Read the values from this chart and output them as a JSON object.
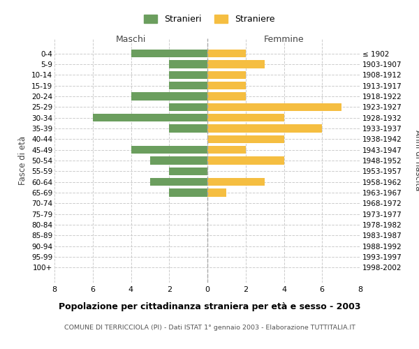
{
  "age_groups": [
    "0-4",
    "5-9",
    "10-14",
    "15-19",
    "20-24",
    "25-29",
    "30-34",
    "35-39",
    "40-44",
    "45-49",
    "50-54",
    "55-59",
    "60-64",
    "65-69",
    "70-74",
    "75-79",
    "80-84",
    "85-89",
    "90-94",
    "95-99",
    "100+"
  ],
  "birth_years": [
    "1998-2002",
    "1993-1997",
    "1988-1992",
    "1983-1987",
    "1978-1982",
    "1973-1977",
    "1968-1972",
    "1963-1967",
    "1958-1962",
    "1953-1957",
    "1948-1952",
    "1943-1947",
    "1938-1942",
    "1933-1937",
    "1928-1932",
    "1923-1927",
    "1918-1922",
    "1913-1917",
    "1908-1912",
    "1903-1907",
    "≤ 1902"
  ],
  "maschi": [
    4,
    2,
    2,
    2,
    4,
    2,
    6,
    2,
    0,
    4,
    3,
    2,
    3,
    2,
    0,
    0,
    0,
    0,
    0,
    0,
    0
  ],
  "femmine": [
    2,
    3,
    2,
    2,
    2,
    7,
    4,
    6,
    4,
    2,
    4,
    0,
    3,
    1,
    0,
    0,
    0,
    0,
    0,
    0,
    0
  ],
  "male_color": "#6B9E5E",
  "female_color": "#F5BE41",
  "title": "Popolazione per cittadinanza straniera per età e sesso - 2003",
  "subtitle": "COMUNE DI TERRICCIOLA (PI) - Dati ISTAT 1° gennaio 2003 - Elaborazione TUTTITALIA.IT",
  "xlabel_left": "Maschi",
  "xlabel_right": "Femmine",
  "ylabel_left": "Fasce di età",
  "ylabel_right": "Anni di nascita",
  "xlim": 8,
  "legend_stranieri": "Stranieri",
  "legend_straniere": "Straniere",
  "bg_color": "#FFFFFF",
  "grid_color": "#CCCCCC",
  "bar_height": 0.75
}
